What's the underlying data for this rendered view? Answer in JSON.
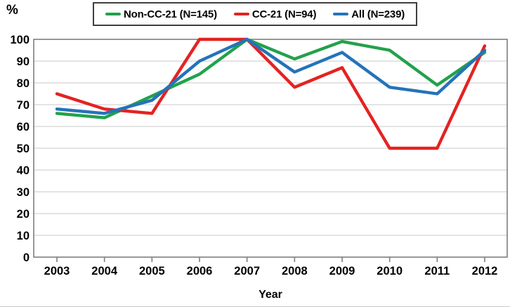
{
  "chart_data": {
    "type": "line",
    "title": "",
    "ylabel": "%",
    "xlabel": "Year",
    "ylim": [
      0,
      100
    ],
    "ytick_step": 10,
    "grid": "horizontal",
    "legend_position": "top",
    "x": [
      2003,
      2004,
      2005,
      2006,
      2007,
      2008,
      2009,
      2010,
      2011,
      2012
    ],
    "series": [
      {
        "name": "Non-CC-21 (N=145)",
        "color": "#22A14B",
        "values": [
          66,
          64,
          74,
          84,
          100,
          91,
          99,
          95,
          79,
          94
        ]
      },
      {
        "name": "CC-21 (N=94)",
        "color": "#E32322",
        "values": [
          75,
          68,
          66,
          100,
          100,
          78,
          87,
          50,
          50,
          97
        ]
      },
      {
        "name": "All (N=239)",
        "color": "#2473BA",
        "values": [
          68,
          66,
          72,
          90,
          100,
          85,
          94,
          78,
          75,
          95
        ]
      }
    ]
  },
  "colors": {
    "gridline": "#D3D3D3",
    "axis_border": "#7F7F7F",
    "tick": "#7F7F7F",
    "text": "#000000",
    "background": "#FFFFFF"
  }
}
